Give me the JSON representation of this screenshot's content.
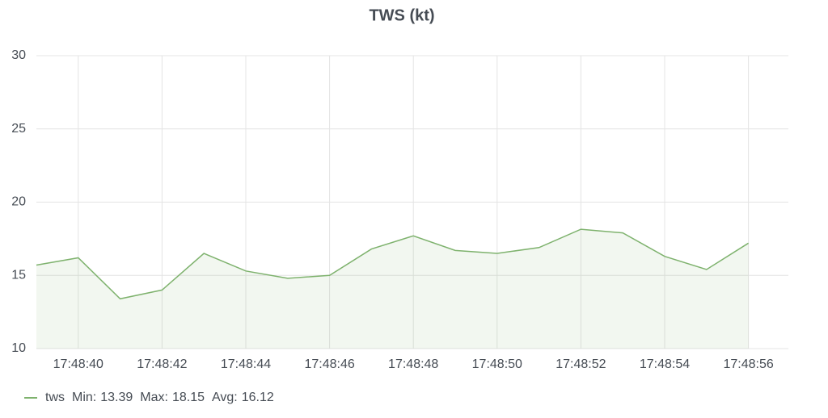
{
  "chart_data": {
    "type": "line",
    "title": "TWS (kt)",
    "categories": [
      null,
      "17:48:40",
      null,
      "17:48:42",
      null,
      "17:48:44",
      null,
      "17:48:46",
      null,
      "17:48:48",
      null,
      "17:48:50",
      null,
      "17:48:52",
      null,
      "17:48:54",
      null,
      "17:48:56"
    ],
    "series": [
      {
        "name": "tws",
        "color": "#7eb26d",
        "values": [
          15.7,
          16.2,
          13.4,
          14.0,
          16.5,
          15.3,
          14.8,
          15.0,
          16.8,
          17.7,
          16.7,
          16.5,
          16.9,
          18.15,
          17.9,
          16.3,
          15.4,
          17.2
        ]
      }
    ],
    "legend_stats": [
      {
        "label": "Min:",
        "value": 13.39
      },
      {
        "label": "Max:",
        "value": 18.15
      },
      {
        "label": "Avg:",
        "value": 16.12
      }
    ],
    "ylim": [
      10,
      30
    ],
    "yticks": [
      10,
      15,
      20,
      25,
      30
    ],
    "grid": true,
    "fill_area": true
  }
}
